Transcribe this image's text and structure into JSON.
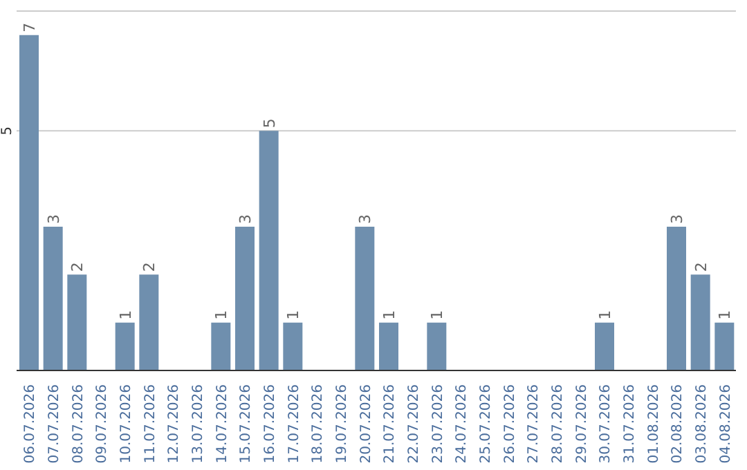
{
  "chart_data": {
    "type": "bar",
    "categories": [
      "06.07.2026",
      "07.07.2026",
      "08.07.2026",
      "09.07.2026",
      "10.07.2026",
      "11.07.2026",
      "12.07.2026",
      "13.07.2026",
      "14.07.2026",
      "15.07.2026",
      "16.07.2026",
      "17.07.2026",
      "18.07.2026",
      "19.07.2026",
      "20.07.2026",
      "21.07.2026",
      "22.07.2026",
      "23.07.2026",
      "24.07.2026",
      "25.07.2026",
      "26.07.2026",
      "27.07.2026",
      "28.07.2026",
      "29.07.2026",
      "30.07.2026",
      "31.07.2026",
      "01.08.2026",
      "02.08.2026",
      "03.08.2026",
      "04.08.2026"
    ],
    "values": [
      7,
      3,
      2,
      0,
      1,
      2,
      0,
      0,
      1,
      3,
      5,
      1,
      0,
      0,
      3,
      1,
      0,
      1,
      0,
      0,
      0,
      0,
      0,
      0,
      1,
      0,
      0,
      3,
      2,
      1
    ],
    "value_labels": [
      "7",
      "3",
      "2",
      null,
      "1",
      "2",
      null,
      null,
      "1",
      "3",
      "5",
      "1",
      null,
      null,
      "3",
      "1",
      null,
      "1",
      null,
      null,
      null,
      null,
      null,
      null,
      "1",
      null,
      null,
      "3",
      "2",
      "1"
    ],
    "color": "#6f8fae",
    "ylim": [
      0,
      7.5
    ],
    "yticks": [
      5
    ],
    "grid": "y"
  }
}
